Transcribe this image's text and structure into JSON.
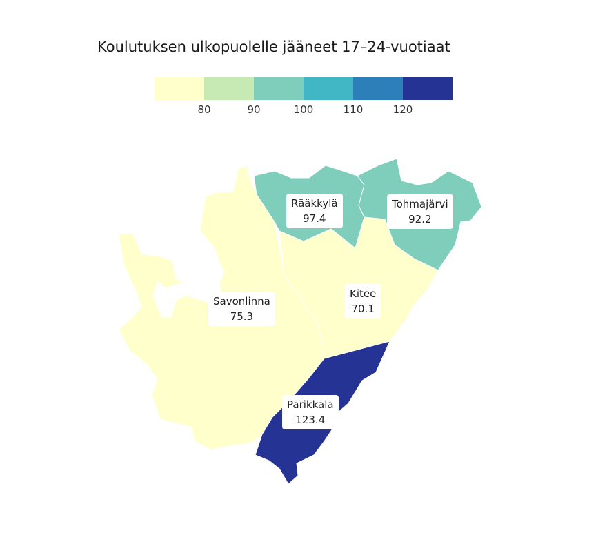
{
  "title": "Koulutuksen ulkopuolelle jääneet 17–24-vuotiaat",
  "legend": {
    "colors": [
      "#ffffcc",
      "#c7e9b4",
      "#7fcdbb",
      "#41b6c4",
      "#2c7fb8",
      "#253494"
    ],
    "ticks": [
      "80",
      "90",
      "100",
      "110",
      "120"
    ]
  },
  "regions": [
    {
      "name": "Savonlinna",
      "value": "75.3",
      "color": "#ffffcc"
    },
    {
      "name": "Kitee",
      "value": "70.1",
      "color": "#ffffcc"
    },
    {
      "name": "Rääkkylä",
      "value": "97.4",
      "color": "#7fcdbb"
    },
    {
      "name": "Tohmajärvi",
      "value": "92.2",
      "color": "#7fcdbb"
    },
    {
      "name": "Parikkala",
      "value": "123.4",
      "color": "#253494"
    }
  ]
}
